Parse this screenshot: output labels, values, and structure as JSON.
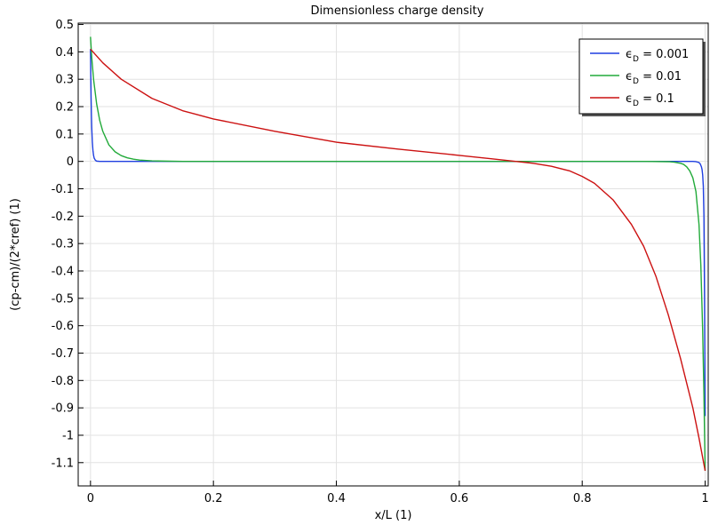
{
  "chart_data": {
    "type": "line",
    "title": "Dimensionless charge density",
    "xlabel": "x/L (1)",
    "ylabel": "(cp-cm)/(2*cref) (1)",
    "xlim": [
      -0.02,
      1.005
    ],
    "ylim": [
      -1.185,
      0.505
    ],
    "x_ticks": [
      0,
      0.2,
      0.4,
      0.6,
      0.8,
      1
    ],
    "x_tick_labels": [
      "0",
      "0.2",
      "0.4",
      "0.6",
      "0.8",
      "1"
    ],
    "y_ticks": [
      0.5,
      0.4,
      0.3,
      0.2,
      0.1,
      0,
      -0.1,
      -0.2,
      -0.3,
      -0.4,
      -0.5,
      -0.6,
      -0.7,
      -0.8,
      -0.9,
      -1,
      -1.1
    ],
    "y_tick_labels": [
      "0.5",
      "0.4",
      "0.3",
      "0.2",
      "0.1",
      "0",
      "-0.1",
      "-0.2",
      "-0.3",
      "-0.4",
      "-0.5",
      "-0.6",
      "-0.7",
      "-0.8",
      "-0.9",
      "-1",
      "-1.1"
    ],
    "grid": true,
    "legend_position": "top-right",
    "series": [
      {
        "name": "ϵD = 0.001",
        "legend_main": "ϵ",
        "legend_sub": "D",
        "legend_value": " = 0.001",
        "color": "#1f3fe0",
        "x": [
          0,
          0.0005,
          0.001,
          0.0015,
          0.002,
          0.003,
          0.004,
          0.005,
          0.006,
          0.008,
          0.01,
          0.015,
          0.02,
          0.5,
          0.98,
          0.985,
          0.99,
          0.992,
          0.994,
          0.995,
          0.996,
          0.997,
          0.998,
          0.999,
          1
        ],
        "y": [
          0.41,
          0.31,
          0.23,
          0.17,
          0.125,
          0.07,
          0.04,
          0.022,
          0.012,
          0.004,
          0.001,
          0,
          0,
          0,
          0,
          -0.001,
          -0.004,
          -0.009,
          -0.02,
          -0.03,
          -0.05,
          -0.09,
          -0.2,
          -0.5,
          -0.93
        ]
      },
      {
        "name": "ϵD = 0.01",
        "legend_main": "ϵ",
        "legend_sub": "D",
        "legend_value": " = 0.01",
        "color": "#22aa3a",
        "x": [
          0,
          0.002,
          0.005,
          0.01,
          0.015,
          0.02,
          0.03,
          0.04,
          0.05,
          0.06,
          0.07,
          0.08,
          0.1,
          0.12,
          0.15,
          0.2,
          0.5,
          0.9,
          0.94,
          0.95,
          0.96,
          0.965,
          0.97,
          0.975,
          0.98,
          0.985,
          0.99,
          0.993,
          0.996,
          0.998,
          1
        ],
        "y": [
          0.455,
          0.38,
          0.3,
          0.21,
          0.15,
          0.11,
          0.06,
          0.035,
          0.021,
          0.013,
          0.008,
          0.005,
          0.002,
          0.001,
          0,
          0,
          0,
          0,
          -0.001,
          -0.003,
          -0.007,
          -0.011,
          -0.02,
          -0.035,
          -0.06,
          -0.11,
          -0.23,
          -0.38,
          -0.62,
          -0.85,
          -1.13
        ]
      },
      {
        "name": "ϵD = 0.1",
        "legend_main": "ϵ",
        "legend_sub": "D",
        "legend_value": " = 0.1",
        "color": "#cc1111",
        "x": [
          0,
          0.02,
          0.05,
          0.1,
          0.15,
          0.2,
          0.3,
          0.4,
          0.5,
          0.6,
          0.65,
          0.7,
          0.72,
          0.75,
          0.78,
          0.8,
          0.82,
          0.85,
          0.88,
          0.9,
          0.92,
          0.94,
          0.96,
          0.98,
          0.99,
          1
        ],
        "y": [
          0.41,
          0.36,
          0.3,
          0.23,
          0.185,
          0.155,
          0.11,
          0.07,
          0.045,
          0.022,
          0.01,
          -0.002,
          -0.007,
          -0.018,
          -0.035,
          -0.055,
          -0.08,
          -0.14,
          -0.23,
          -0.31,
          -0.42,
          -0.56,
          -0.72,
          -0.9,
          -1.01,
          -1.13
        ]
      }
    ]
  }
}
